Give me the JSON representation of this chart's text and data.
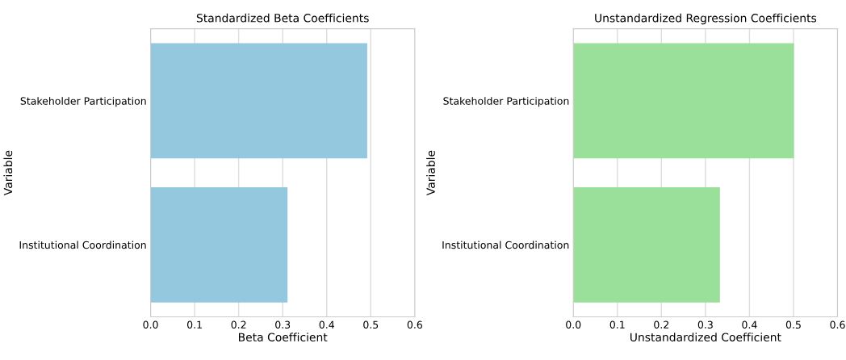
{
  "chart_data": [
    {
      "type": "bar",
      "orientation": "horizontal",
      "title": "Standardized Beta Coefficients",
      "xlabel": "Beta Coefficient",
      "ylabel": "Variable",
      "categories": [
        "Stakeholder Participation",
        "Institutional Coordination"
      ],
      "values": [
        0.492,
        0.311
      ],
      "color": "#93c8df",
      "xlim": [
        0.0,
        0.6
      ],
      "xticks": [
        {
          "value": 0.0,
          "label": "0.0"
        },
        0.1,
        0.2,
        0.3,
        0.4,
        0.5,
        0.6
      ],
      "grid": "x"
    },
    {
      "type": "bar",
      "orientation": "horizontal",
      "title": "Unstandardized Regression Coefficients",
      "xlabel": "Unstandardized Coefficient",
      "ylabel": "Variable",
      "categories": [
        "Stakeholder Participation",
        "Institutional Coordination"
      ],
      "values": [
        0.501,
        0.333
      ],
      "color": "#9ae09a",
      "xlim": [
        0.0,
        0.6
      ],
      "xticks": [
        {
          "value": 0.0,
          "label": "0.0"
        },
        0.1,
        0.2,
        0.3,
        0.4,
        0.5,
        0.6
      ],
      "grid": "x"
    }
  ]
}
